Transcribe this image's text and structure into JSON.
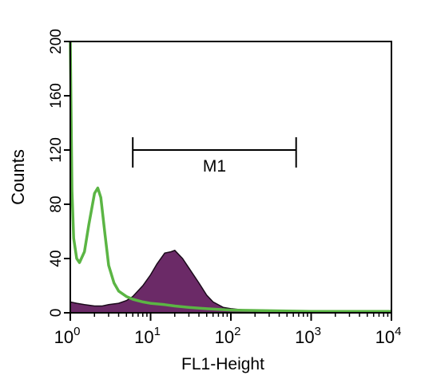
{
  "chart_data": {
    "type": "area",
    "xlabel": "FL1-Height",
    "ylabel": "Counts",
    "x_scale": "log",
    "xlim": [
      1,
      10000
    ],
    "ylim": [
      0,
      200
    ],
    "x_ticks": [
      {
        "value": 1,
        "base": "10",
        "exp": "0"
      },
      {
        "value": 10,
        "base": "10",
        "exp": "1"
      },
      {
        "value": 100,
        "base": "10",
        "exp": "2"
      },
      {
        "value": 1000,
        "base": "10",
        "exp": "3"
      },
      {
        "value": 10000,
        "base": "10",
        "exp": "4"
      }
    ],
    "y_ticks": [
      "0",
      "40",
      "80",
      "120",
      "160",
      "200"
    ],
    "grid": false,
    "marker": {
      "label": "M1",
      "x_start": 6,
      "x_end": 650,
      "y": 120
    },
    "colors": {
      "filled": "#6b2a67",
      "outline": "#5bb544",
      "axis": "#000000"
    },
    "series": [
      {
        "style": "filled",
        "x": [
          1.0,
          1.2,
          1.5,
          2.0,
          2.5,
          3.0,
          4.0,
          5.0,
          6.0,
          8.0,
          10.0,
          12.0,
          15.0,
          18.0,
          20.0,
          25.0,
          30.0,
          40.0,
          50.0,
          60.0,
          80.0,
          100.0,
          150.0,
          200.0,
          300.0,
          500.0,
          1000.0,
          10000.0
        ],
        "y": [
          8,
          7,
          6,
          5,
          5,
          6,
          7,
          9,
          12,
          20,
          28,
          36,
          44,
          45,
          46,
          40,
          33,
          22,
          13,
          8,
          4,
          3,
          2,
          1,
          1,
          1,
          1,
          1
        ]
      },
      {
        "style": "outline",
        "x": [
          1.0,
          1.05,
          1.1,
          1.2,
          1.3,
          1.5,
          1.7,
          2.0,
          2.2,
          2.4,
          2.7,
          3.0,
          3.5,
          4.0,
          5.0,
          6.0,
          8.0,
          10.0,
          15.0,
          20.0,
          30.0,
          50.0,
          100.0,
          1000.0,
          10000.0
        ],
        "y": [
          200,
          90,
          55,
          40,
          37,
          45,
          65,
          88,
          92,
          85,
          58,
          35,
          22,
          16,
          12,
          10,
          8,
          7,
          6,
          5,
          4,
          3,
          2,
          1,
          1
        ]
      }
    ]
  }
}
